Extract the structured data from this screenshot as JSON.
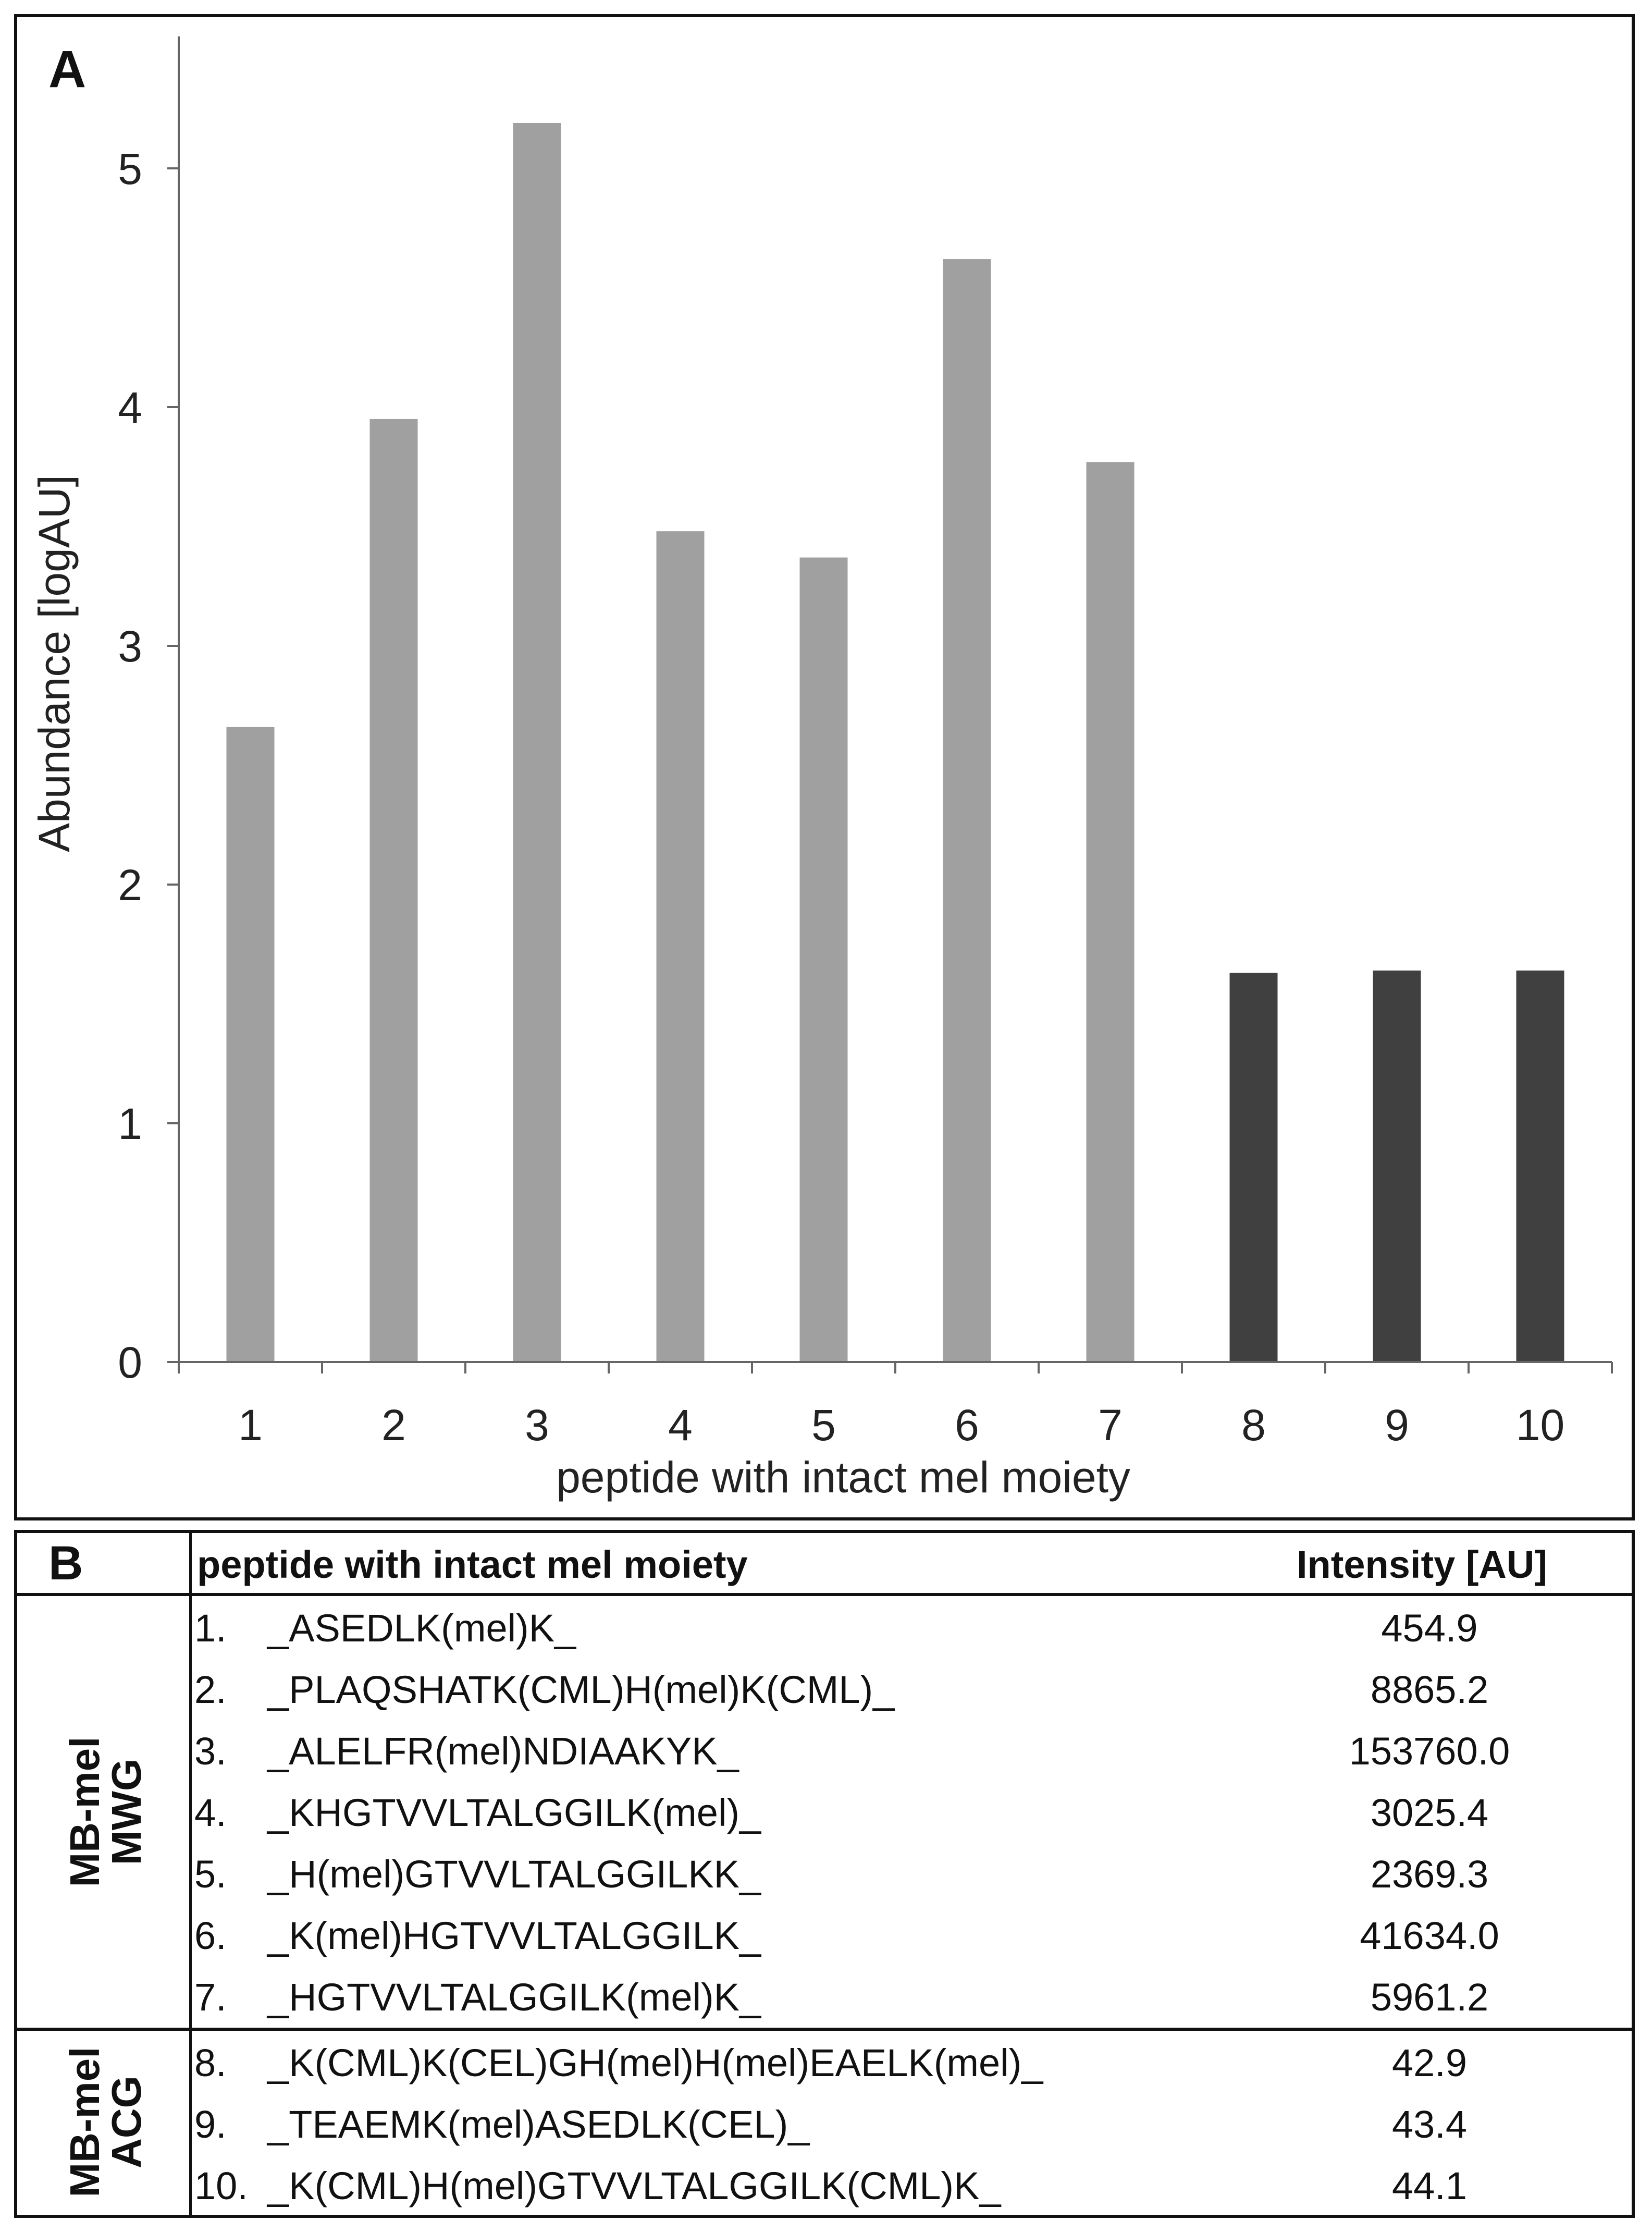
{
  "panel_a": {
    "letter": "A"
  },
  "panel_b": {
    "letter": "B",
    "header_peptide": "peptide with intact mel moiety",
    "header_intensity": "Intensity [AU]",
    "groups": [
      {
        "line1": "MB-mel",
        "line2": "MWG"
      },
      {
        "line1": "MB-mel",
        "line2": "ACG"
      }
    ],
    "rows": [
      {
        "num": "1.",
        "peptide": "_ASEDLK(mel)K_",
        "intensity": "454.9"
      },
      {
        "num": "2.",
        "peptide": "_PLAQSHATK(CML)H(mel)K(CML)_",
        "intensity": "8865.2"
      },
      {
        "num": "3.",
        "peptide": "_ALELFR(mel)NDIAAKYK_",
        "intensity": "153760.0"
      },
      {
        "num": "4.",
        "peptide": "_KHGTVVLTALGGILK(mel)_",
        "intensity": "3025.4"
      },
      {
        "num": "5.",
        "peptide": "_H(mel)GTVVLTALGGILKK_",
        "intensity": "2369.3"
      },
      {
        "num": "6.",
        "peptide": "_K(mel)HGTVVLTALGGILK_",
        "intensity": "41634.0"
      },
      {
        "num": "7.",
        "peptide": "_HGTVVLTALGGILK(mel)K_",
        "intensity": "5961.2"
      },
      {
        "num": "8.",
        "peptide": "_K(CML)K(CEL)GH(mel)H(mel)EAELK(mel)_",
        "intensity": "42.9"
      },
      {
        "num": "9.",
        "peptide": "_TEAEMK(mel)ASEDLK(CEL)_",
        "intensity": "43.4"
      },
      {
        "num": "10.",
        "peptide": "_K(CML)H(mel)GTVVLTALGGILK(CML)K_",
        "intensity": "44.1"
      }
    ]
  },
  "chart_data": {
    "type": "bar",
    "title": "",
    "xlabel": "peptide with intact mel moiety",
    "ylabel": "Abundance [logAU]",
    "ylim": [
      0,
      5.4
    ],
    "yticks": [
      "0",
      "1",
      "2",
      "3",
      "4",
      "5"
    ],
    "categories": [
      "1",
      "2",
      "3",
      "4",
      "5",
      "6",
      "7",
      "8",
      "9",
      "10"
    ],
    "values": [
      2.66,
      3.95,
      5.19,
      3.48,
      3.37,
      4.62,
      3.77,
      1.63,
      1.64,
      1.64
    ],
    "bar_colors": [
      "#a0a0a0",
      "#a0a0a0",
      "#a0a0a0",
      "#a0a0a0",
      "#a0a0a0",
      "#a0a0a0",
      "#a0a0a0",
      "#404040",
      "#404040",
      "#404040"
    ],
    "grid": false,
    "legend": "none"
  }
}
